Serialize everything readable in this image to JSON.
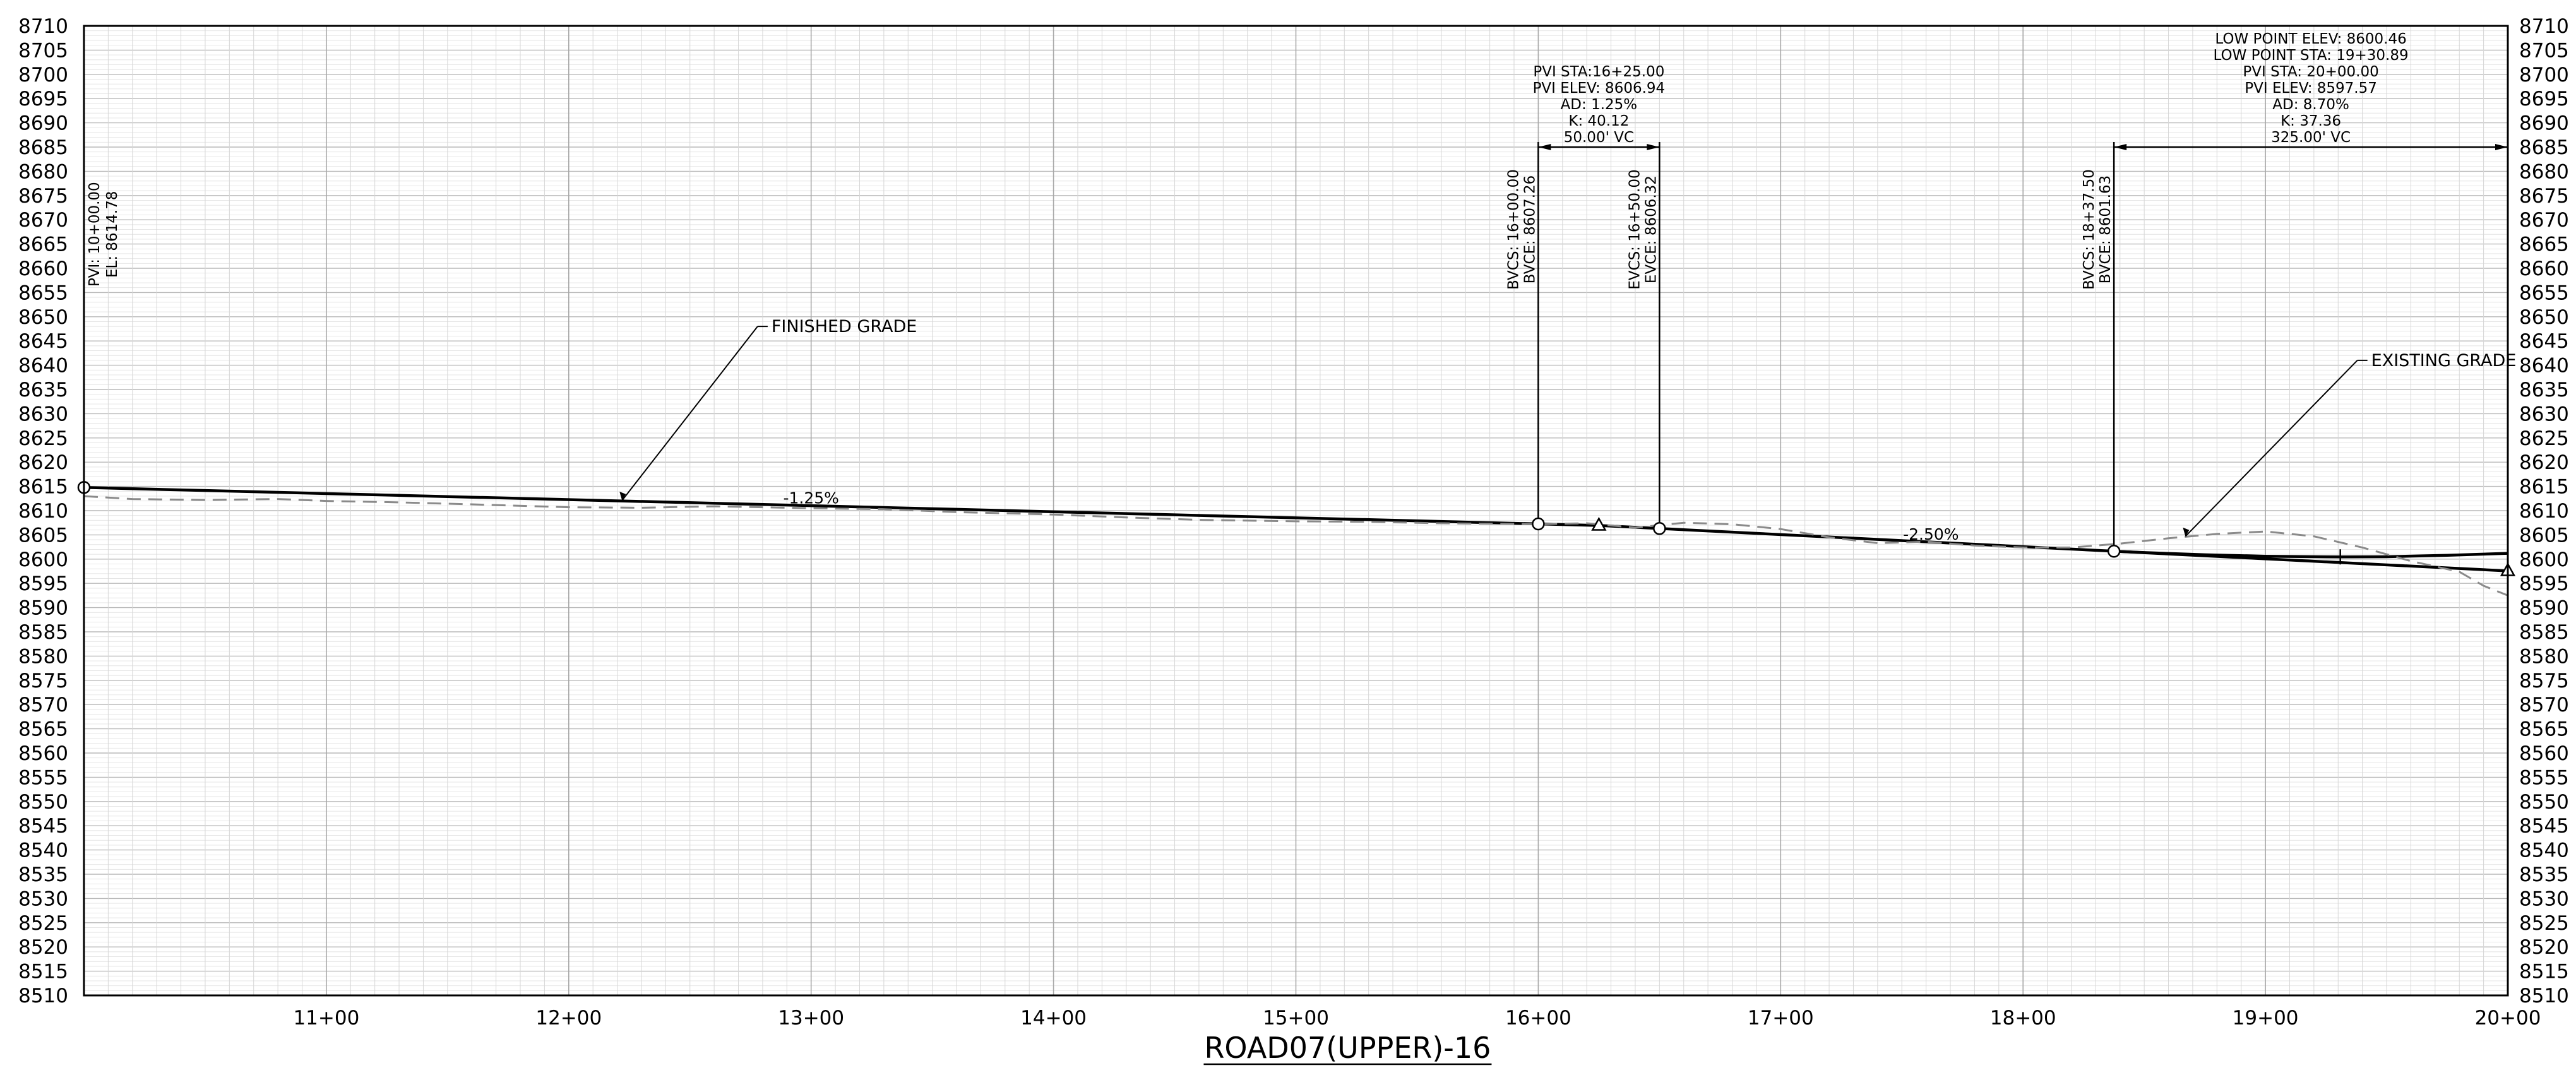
{
  "chart_data": {
    "type": "line",
    "title": "ROAD07(UPPER)-16",
    "xlabel": "",
    "ylabel": "",
    "grid": true,
    "xlim": [
      1000,
      2000
    ],
    "ylim": [
      8510,
      8710
    ],
    "y_tick_step": 5,
    "x_tick_labels": [
      {
        "sta": 1100,
        "label": "11+00"
      },
      {
        "sta": 1200,
        "label": "12+00"
      },
      {
        "sta": 1300,
        "label": "13+00"
      },
      {
        "sta": 1400,
        "label": "14+00"
      },
      {
        "sta": 1500,
        "label": "15+00"
      },
      {
        "sta": 1600,
        "label": "16+00"
      },
      {
        "sta": 1700,
        "label": "17+00"
      },
      {
        "sta": 1800,
        "label": "18+00"
      },
      {
        "sta": 1900,
        "label": "19+00"
      },
      {
        "sta": 2000,
        "label": "20+00"
      }
    ],
    "series": [
      {
        "key": "finished",
        "style": "solid",
        "color": "#000000",
        "points": [
          [
            1000,
            8614.78
          ],
          [
            1600,
            8607.26
          ],
          [
            1625,
            8606.94
          ],
          [
            1650,
            8606.32
          ],
          [
            1837.5,
            8601.63
          ],
          [
            1850,
            8601.35
          ],
          [
            1875,
            8600.9
          ],
          [
            1900,
            8600.6
          ],
          [
            1930.89,
            8600.46
          ],
          [
            1950,
            8600.5
          ],
          [
            1975,
            8600.8
          ],
          [
            2000,
            8601.2
          ]
        ]
      },
      {
        "key": "tangent",
        "style": "solid",
        "color": "#000000",
        "points": [
          [
            1837.5,
            8601.63
          ],
          [
            2000,
            8597.57
          ]
        ]
      },
      {
        "key": "existing",
        "style": "dashed",
        "color": "#8a8a8a",
        "points": [
          [
            1000,
            8613
          ],
          [
            1020,
            8612.4
          ],
          [
            1050,
            8612.2
          ],
          [
            1080,
            8612.4
          ],
          [
            1100,
            8612
          ],
          [
            1130,
            8611.7
          ],
          [
            1160,
            8611.3
          ],
          [
            1200,
            8610.7
          ],
          [
            1230,
            8610.6
          ],
          [
            1260,
            8610.9
          ],
          [
            1300,
            8610.5
          ],
          [
            1330,
            8610.3
          ],
          [
            1360,
            8609.7
          ],
          [
            1400,
            8609.2
          ],
          [
            1430,
            8608.6
          ],
          [
            1460,
            8608.1
          ],
          [
            1500,
            8607.8
          ],
          [
            1530,
            8607.7
          ],
          [
            1560,
            8607.4
          ],
          [
            1600,
            8607.2
          ],
          [
            1620,
            8607.4
          ],
          [
            1640,
            8606.5
          ],
          [
            1660,
            8607.5
          ],
          [
            1680,
            8607.2
          ],
          [
            1700,
            8606.2
          ],
          [
            1720,
            8604.5
          ],
          [
            1740,
            8603.3
          ],
          [
            1760,
            8603.6
          ],
          [
            1780,
            8602.8
          ],
          [
            1800,
            8602.4
          ],
          [
            1820,
            8602.4
          ],
          [
            1840,
            8603.2
          ],
          [
            1860,
            8604.3
          ],
          [
            1880,
            8605.2
          ],
          [
            1900,
            8605.7
          ],
          [
            1920,
            8604.7
          ],
          [
            1940,
            8602.4
          ],
          [
            1960,
            8599.6
          ],
          [
            1980,
            8597.4
          ],
          [
            1990,
            8594.5
          ],
          [
            2000,
            8592.5
          ]
        ]
      }
    ],
    "pvi_points": [
      {
        "sta": 1000,
        "elev": 8614.78,
        "symbol": "circle"
      },
      {
        "sta": 1600,
        "elev": 8607.26,
        "symbol": "circle"
      },
      {
        "sta": 1625,
        "elev": 8606.94,
        "symbol": "triangle"
      },
      {
        "sta": 1650,
        "elev": 8606.32,
        "symbol": "circle"
      },
      {
        "sta": 1837.5,
        "elev": 8601.63,
        "symbol": "circle"
      },
      {
        "sta": 2000,
        "elev": 8597.57,
        "symbol": "triangle"
      }
    ],
    "annotations": {
      "start_pvi": {
        "sta": 1000,
        "lines": [
          "PVI: 10+00.00",
          "EL: 8614.78"
        ]
      },
      "vc1": {
        "bvc_sta": 1600,
        "evc_sta": 1650,
        "dim_elev": 8685,
        "info": [
          "PVI  STA:16+25.00",
          "PVI  ELEV: 8606.94",
          "AD: 1.25%",
          "K: 40.12",
          "50.00' VC"
        ],
        "bvc_text": [
          "BVCS:  16+00.00",
          "BVCE:  8607.26"
        ],
        "evc_text": [
          "EVCS:  16+50.00",
          "EVCE:  8606.32"
        ]
      },
      "vc2": {
        "bvc_sta": 1837.5,
        "evc_sta": 2000,
        "dim_elev": 8685,
        "info": [
          "LOW  POINT  ELEV:  8600.46",
          "LOW  POINT  STA:  19+30.89",
          "PVI  STA: 20+00.00",
          "PVI  ELEV: 8597.57",
          "AD: 8.70%",
          "K: 37.36",
          "325.00' VC"
        ],
        "bvc_text": [
          "BVCS:  18+37.50",
          "BVCE:  8601.63"
        ]
      },
      "grade1": {
        "text": "-1.25%",
        "sta": 1300,
        "elev": 8611.5
      },
      "grade2": {
        "text": "-2.50%",
        "sta": 1762,
        "elev": 8604.0
      },
      "finished_label": {
        "text": "FINISHED GRADE",
        "sta": 1280,
        "elev": 8648,
        "target_sta": 1222,
        "target_elev": 8612.1
      },
      "existing_label": {
        "text": "EXISTING GRADE",
        "sta": 1940,
        "elev": 8641,
        "target_sta": 1867,
        "target_elev": 8604.7
      },
      "low_point_tick": {
        "sta": 1930.89,
        "elev": 8600.46
      }
    }
  }
}
